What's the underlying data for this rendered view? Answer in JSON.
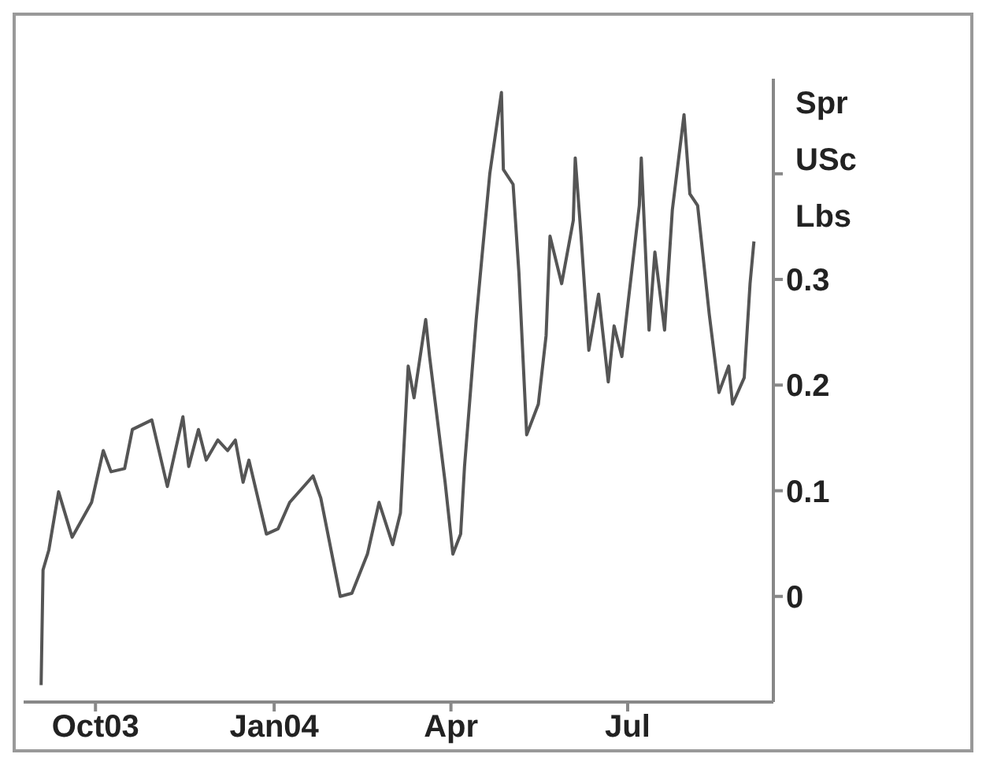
{
  "chart_data": {
    "type": "line",
    "ylabel": "Spr USc Lbs",
    "color": "#555555",
    "grid": false,
    "legend": false,
    "marker": "none",
    "line_style": "solid",
    "x": [
      "2003-09-03",
      "2003-09-04",
      "2003-09-07",
      "2003-09-12",
      "2003-09-19",
      "2003-09-29",
      "2003-10-05",
      "2003-10-09",
      "2003-10-16",
      "2003-10-20",
      "2003-10-30",
      "2003-11-07",
      "2003-11-15",
      "2003-11-18",
      "2003-11-23",
      "2003-11-27",
      "2003-12-03",
      "2003-12-08",
      "2003-12-12",
      "2003-12-16",
      "2003-12-19",
      "2003-12-28",
      "2004-01-03",
      "2004-01-09",
      "2004-01-21",
      "2004-01-25",
      "2004-02-04",
      "2004-02-10",
      "2004-02-18",
      "2004-02-24",
      "2004-03-02",
      "2004-03-06",
      "2004-03-10",
      "2004-03-13",
      "2004-03-19",
      "2004-03-21",
      "2004-03-29",
      "2004-04-02",
      "2004-04-06",
      "2004-04-08",
      "2004-04-14",
      "2004-04-17",
      "2004-04-21",
      "2004-04-27",
      "2004-04-28",
      "2004-05-03",
      "2004-05-06",
      "2004-05-10",
      "2004-05-16",
      "2004-05-20",
      "2004-05-22",
      "2004-05-28",
      "2004-06-03",
      "2004-06-04",
      "2004-06-07",
      "2004-06-11",
      "2004-06-16",
      "2004-06-21",
      "2004-06-24",
      "2004-06-28",
      "2004-07-07",
      "2004-07-08",
      "2004-07-12",
      "2004-07-15",
      "2004-07-20",
      "2004-07-24",
      "2004-07-30",
      "2004-08-02",
      "2004-08-06",
      "2004-08-12",
      "2004-08-17",
      "2004-08-22",
      "2004-08-24",
      "2004-08-30",
      "2004-09-02",
      "2004-09-04"
    ],
    "values": [
      -0.084,
      0.025,
      0.044,
      0.099,
      0.056,
      0.089,
      0.138,
      0.118,
      0.121,
      0.158,
      0.167,
      0.104,
      0.17,
      0.123,
      0.158,
      0.129,
      0.148,
      0.138,
      0.148,
      0.108,
      0.129,
      0.059,
      0.064,
      0.089,
      0.114,
      0.093,
      0.0,
      0.003,
      0.04,
      0.089,
      0.049,
      0.079,
      0.218,
      0.188,
      0.262,
      0.227,
      0.108,
      0.04,
      0.059,
      0.123,
      0.262,
      0.322,
      0.4,
      0.477,
      0.404,
      0.39,
      0.306,
      0.153,
      0.182,
      0.247,
      0.341,
      0.296,
      0.356,
      0.415,
      0.341,
      0.233,
      0.286,
      0.203,
      0.256,
      0.227,
      0.37,
      0.415,
      0.252,
      0.326,
      0.252,
      0.366,
      0.456,
      0.381,
      0.37,
      0.267,
      0.193,
      0.218,
      0.182,
      0.207,
      0.296,
      0.336
    ],
    "xlim": [
      "2003-08-25",
      "2004-09-14"
    ],
    "xticks": [
      {
        "value": "2003-10-01",
        "label": "Oct03"
      },
      {
        "value": "2004-01-01",
        "label": "Jan04"
      },
      {
        "value": "2004-04-01",
        "label": "Apr"
      },
      {
        "value": "2004-07-01",
        "label": "Jul"
      }
    ],
    "ylim": [
      -0.1,
      0.49
    ],
    "yticks": [
      0,
      0.1,
      0.2,
      0.3,
      {
        "value": 0.4,
        "label": null
      }
    ]
  }
}
